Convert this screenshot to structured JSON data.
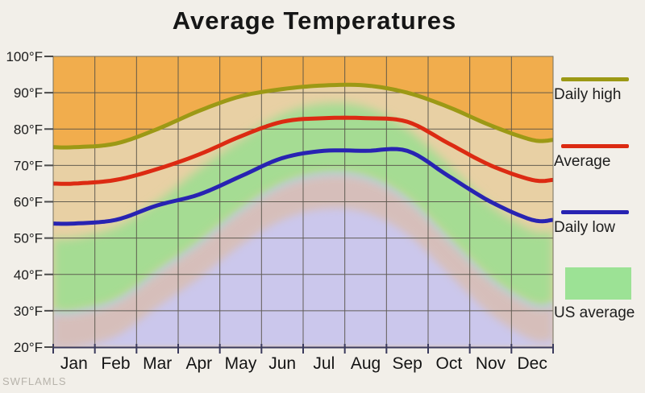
{
  "title": "Average Temperatures",
  "watermark": "SWFLAMLS",
  "legend": [
    {
      "label": "Daily high",
      "type": "line",
      "color": "#9c9915"
    },
    {
      "label": "Average",
      "type": "line",
      "color": "#dc2a12"
    },
    {
      "label": "Daily low",
      "type": "line",
      "color": "#2823b2"
    },
    {
      "label": "US average",
      "type": "area",
      "color": "#9ce295"
    }
  ],
  "chart_data": {
    "type": "line",
    "title": "Average Temperatures",
    "categories": [
      "Jan",
      "Feb",
      "Mar",
      "Apr",
      "May",
      "Jun",
      "Jul",
      "Aug",
      "Sep",
      "Oct",
      "Nov",
      "Dec"
    ],
    "y_tick_labels": [
      "100°F",
      "90°F",
      "80°F",
      "70°F",
      "60°F",
      "50°F",
      "40°F",
      "30°F",
      "20°F"
    ],
    "y_tick_values": [
      100,
      90,
      80,
      70,
      60,
      50,
      40,
      30,
      20
    ],
    "ylim": [
      20,
      100
    ],
    "grid": true,
    "legend_position": "right",
    "series": [
      {
        "name": "Daily high",
        "color": "#9c9915",
        "values": [
          75,
          76,
          80,
          85,
          89,
          91,
          92,
          92,
          90,
          86,
          81,
          77
        ]
      },
      {
        "name": "Average",
        "color": "#dc2a12",
        "values": [
          65,
          66,
          69,
          73,
          78,
          82,
          83,
          83,
          82,
          76,
          70,
          66
        ]
      },
      {
        "name": "Daily low",
        "color": "#2823b2",
        "values": [
          54,
          55,
          59,
          62,
          67,
          72,
          74,
          74,
          74,
          67,
          60,
          55
        ]
      }
    ],
    "us_average_band": {
      "name": "US average",
      "high": [
        50,
        53,
        60,
        69,
        77,
        84,
        87,
        86,
        80,
        70,
        59,
        52
      ],
      "low": [
        30,
        33,
        41,
        49,
        58,
        65,
        68,
        67,
        61,
        50,
        39,
        32
      ],
      "color": "#a5dc93"
    },
    "background_colors": {
      "above_daily_high": "#f1ad4d",
      "between_high_and_us_band": "#e8d0a4",
      "below_us_band": "#cbc7ec",
      "band_transition": "#d9bdae",
      "grid_line": "#565248",
      "axis_line": "#3a3a5c"
    }
  }
}
